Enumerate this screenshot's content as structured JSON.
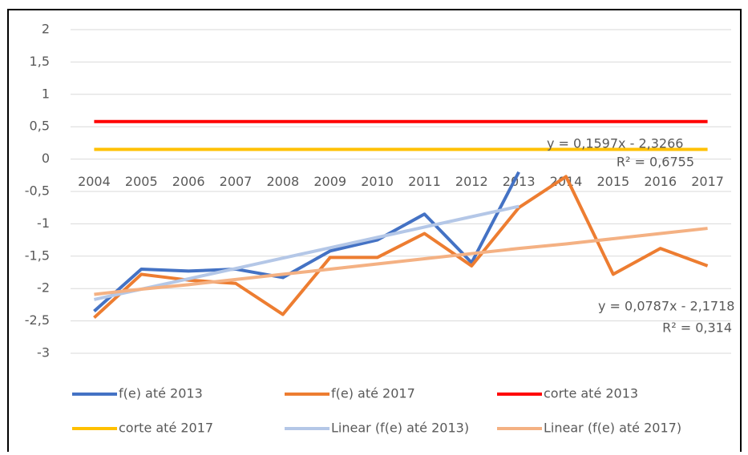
{
  "chart_data": {
    "type": "line",
    "categories": [
      "2004",
      "2005",
      "2006",
      "2007",
      "2008",
      "2009",
      "2010",
      "2011",
      "2012",
      "2013",
      "2014",
      "2015",
      "2016",
      "2017"
    ],
    "series": [
      {
        "name": "f(e) até 2013",
        "color": "#4472c4",
        "values": [
          -2.35,
          -1.7,
          -1.73,
          -1.7,
          -1.83,
          -1.42,
          -1.25,
          -0.85,
          -1.6,
          -0.2,
          null,
          null,
          null,
          null
        ]
      },
      {
        "name": "f(e) até 2017",
        "color": "#ed7d31",
        "values": [
          -2.45,
          -1.78,
          -1.87,
          -1.92,
          -2.4,
          -1.52,
          -1.52,
          -1.15,
          -1.65,
          -0.75,
          -0.27,
          -1.78,
          -1.38,
          -1.65
        ]
      },
      {
        "name": "corte até 2013",
        "color": "#ff0000",
        "values": [
          0.58,
          0.58,
          0.58,
          0.58,
          0.58,
          0.58,
          0.58,
          0.58,
          0.58,
          0.58,
          0.58,
          0.58,
          0.58,
          0.58
        ]
      },
      {
        "name": "corte até 2017",
        "color": "#ffc000",
        "values": [
          0.15,
          0.15,
          0.15,
          0.15,
          0.15,
          0.15,
          0.15,
          0.15,
          0.15,
          0.15,
          0.15,
          0.15,
          0.15,
          0.15
        ]
      },
      {
        "name": "Linear (f(e) até 2013)",
        "color": "#b4c7e7",
        "values": [
          -2.17,
          -2.01,
          -1.85,
          -1.69,
          -1.53,
          -1.37,
          -1.21,
          -1.05,
          -0.89,
          -0.73,
          null,
          null,
          null,
          null
        ]
      },
      {
        "name": "Linear (f(e) até 2017)",
        "color": "#f4b183",
        "values": [
          -2.09,
          -2.01,
          -1.94,
          -1.86,
          -1.78,
          -1.7,
          -1.62,
          -1.54,
          -1.46,
          -1.38,
          -1.31,
          -1.23,
          -1.15,
          -1.07
        ]
      }
    ],
    "annotations": [
      "y = 0,1597x - 2,3266",
      "R² = 0,6755",
      "y = 0,0787x - 2,1718",
      "R² = 0,314"
    ],
    "ylim": [
      -3,
      2
    ],
    "yticks": [
      2,
      {
        "value": 1.5,
        "label": "1,5"
      },
      1,
      {
        "value": 0.5,
        "label": "0,5"
      },
      0,
      {
        "value": -0.5,
        "label": "-0,5"
      },
      -1,
      {
        "value": -1.5,
        "label": "-1,5"
      },
      -2,
      {
        "value": -2.5,
        "label": "-2,5"
      },
      -3
    ],
    "grid": true,
    "legend": "bottom"
  }
}
